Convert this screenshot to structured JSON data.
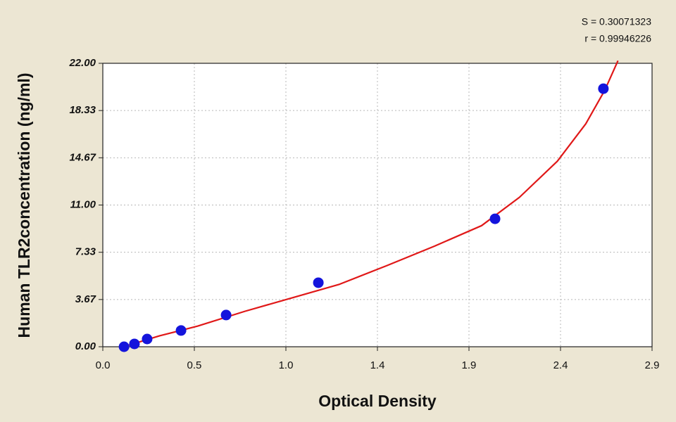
{
  "chart_data": {
    "type": "scatter",
    "annotations": [
      "S = 0.30071323",
      "r = 0.99946226"
    ],
    "x_label": "Optical Density",
    "y_label": "Human TLR2concentration (ng/ml)",
    "x": [
      0.112,
      0.167,
      0.234,
      0.413,
      0.651,
      1.138,
      2.071,
      2.643
    ],
    "series": [
      {
        "color": "#1414dc",
        "values": [
          0,
          0.22,
          0.6,
          1.26,
          2.46,
          4.97,
          9.93,
          20.03
        ]
      }
    ],
    "fit": {
      "color": "#e01818",
      "x": [
        0.11,
        0.3,
        0.5,
        0.75,
        1.0,
        1.25,
        1.5,
        1.75,
        2.0,
        2.2,
        2.4,
        2.55,
        2.65,
        2.72
      ],
      "values": [
        0,
        0.85,
        1.6,
        2.75,
        3.8,
        4.85,
        6.3,
        7.8,
        9.4,
        11.6,
        14.4,
        17.3,
        19.9,
        22.2
      ]
    },
    "xlim": [
      0,
      2.9
    ],
    "ylim": [
      0,
      22
    ],
    "xticks": [
      {
        "value": 0,
        "label": "0.0"
      },
      {
        "value": 0.4833,
        "label": "0.5"
      },
      {
        "value": 0.9667,
        "label": "1.0"
      },
      {
        "value": 1.45,
        "label": "1.4"
      },
      {
        "value": 1.9333,
        "label": "1.9"
      },
      {
        "value": 2.4167,
        "label": "2.4"
      },
      {
        "value": 2.9,
        "label": "2.9"
      }
    ],
    "yticks": [
      {
        "value": 0,
        "label": "0.00"
      },
      {
        "value": 3.6667,
        "label": "3.67"
      },
      {
        "value": 7.3333,
        "label": "7.33"
      },
      {
        "value": 11,
        "label": "11.00"
      },
      {
        "value": 14.6667,
        "label": "14.67"
      },
      {
        "value": 18.3333,
        "label": "18.33"
      },
      {
        "value": 22,
        "label": "22.00"
      }
    ],
    "grid": true
  }
}
